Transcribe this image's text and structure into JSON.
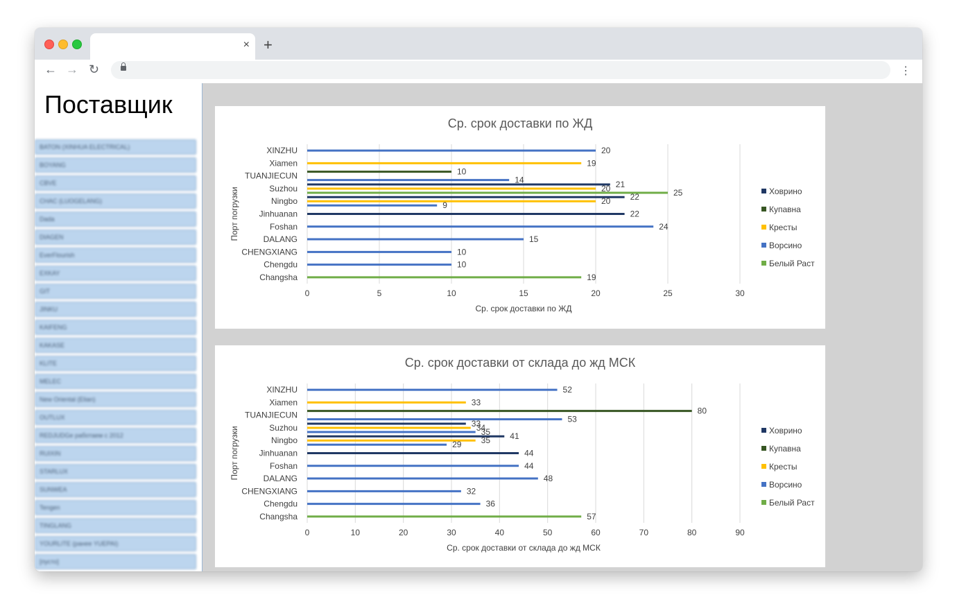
{
  "browser": {
    "tab_close_icon": "×",
    "new_tab_icon": "+",
    "back_icon": "←",
    "forward_icon": "→",
    "reload_icon": "↻",
    "menu_icon": "⋮"
  },
  "sidebar": {
    "title": "Поставщик",
    "items": [
      "BATON (XINHUA ELECTRICAL)",
      "BOYANG",
      "CBVE",
      "CHAC (LUOGELANG)",
      "Dada",
      "DIAGEN",
      "EverFlourish",
      "EXKAY",
      "GIT",
      "JINKU",
      "KAIFENG",
      "KAKASE",
      "KLITE",
      "MELEC",
      "New Oriental (Elian)",
      "OUTLUX",
      "REDJUDGe работаем с 2012",
      "RUIXIN",
      "STARLUX",
      "SUNWEA",
      "Tengen",
      "TINGLANG",
      "YOURLITE (ранее YUEPAI)",
      "[пусто]"
    ]
  },
  "colors": {
    "Ховрино": "#203864",
    "Купавна": "#375623",
    "Кресты": "#ffc000",
    "Ворсино": "#4472c4",
    "Белый Раст": "#70ad47"
  },
  "chart_data": [
    {
      "type": "bar",
      "orientation": "horizontal",
      "title": "Ср. срок доставки по ЖД",
      "xlabel": "Ср. срок доставки по ЖД",
      "ylabel": "Порт погрузки",
      "xlim": [
        0,
        30
      ],
      "xticks": [
        0,
        5,
        10,
        15,
        20,
        25,
        30
      ],
      "grid": true,
      "legend_position": "right",
      "legend": [
        "Ховрино",
        "Купавна",
        "Кресты",
        "Ворсино",
        "Белый Раст"
      ],
      "categories": [
        "XINZHU",
        "Xiamen",
        "TUANJIECUN",
        "Suzhou",
        "Ningbo",
        "Jinhuanan",
        "Foshan",
        "DALANG",
        "CHENGXIANG",
        "Chengdu",
        "Changsha"
      ],
      "bars": [
        {
          "category": "XINZHU",
          "items": [
            {
              "series": "Ворсино",
              "value": 20
            }
          ]
        },
        {
          "category": "Xiamen",
          "items": [
            {
              "series": "Кресты",
              "value": 19
            }
          ]
        },
        {
          "category": "TUANJIECUN",
          "items": [
            {
              "series": "Купавна",
              "value": 10
            },
            {
              "series": "Ворсино",
              "value": 14
            }
          ]
        },
        {
          "category": "Suzhou",
          "items": [
            {
              "series": "Ховрино",
              "value": 21
            },
            {
              "series": "Кресты",
              "value": 20
            },
            {
              "series": "Белый Раст",
              "value": 25
            }
          ]
        },
        {
          "category": "Ningbo",
          "items": [
            {
              "series": "Ховрино",
              "value": 22
            },
            {
              "series": "Кресты",
              "value": 20
            },
            {
              "series": "Ворсино",
              "value": 9
            }
          ]
        },
        {
          "category": "Jinhuanan",
          "items": [
            {
              "series": "Ховрино",
              "value": 22
            }
          ]
        },
        {
          "category": "Foshan",
          "items": [
            {
              "series": "Ворсино",
              "value": 24
            }
          ]
        },
        {
          "category": "DALANG",
          "items": [
            {
              "series": "Ворсино",
              "value": 15
            }
          ]
        },
        {
          "category": "CHENGXIANG",
          "items": [
            {
              "series": "Ворсино",
              "value": 10
            }
          ]
        },
        {
          "category": "Chengdu",
          "items": [
            {
              "series": "Ворсино",
              "value": 10
            }
          ]
        },
        {
          "category": "Changsha",
          "items": [
            {
              "series": "Белый Раст",
              "value": 19
            }
          ]
        }
      ]
    },
    {
      "type": "bar",
      "orientation": "horizontal",
      "title": "Ср. срок доставки от склада до жд МСК",
      "xlabel": "Ср. срок доставки от склада до жд МСК",
      "ylabel": "Порт погрузки",
      "xlim": [
        0,
        90
      ],
      "xticks": [
        0,
        10,
        20,
        30,
        40,
        50,
        60,
        70,
        80,
        90
      ],
      "grid": true,
      "legend_position": "right",
      "legend": [
        "Ховрино",
        "Купавна",
        "Кресты",
        "Ворсино",
        "Белый Раст"
      ],
      "categories": [
        "XINZHU",
        "Xiamen",
        "TUANJIECUN",
        "Suzhou",
        "Ningbo",
        "Jinhuanan",
        "Foshan",
        "DALANG",
        "CHENGXIANG",
        "Chengdu",
        "Changsha"
      ],
      "bars": [
        {
          "category": "XINZHU",
          "items": [
            {
              "series": "Ворсино",
              "value": 52
            }
          ]
        },
        {
          "category": "Xiamen",
          "items": [
            {
              "series": "Кресты",
              "value": 33
            }
          ]
        },
        {
          "category": "TUANJIECUN",
          "items": [
            {
              "series": "Купавна",
              "value": 80
            },
            {
              "series": "Ворсино",
              "value": 53
            }
          ]
        },
        {
          "category": "Suzhou",
          "items": [
            {
              "series": "Ховрино",
              "value": 33
            },
            {
              "series": "Кресты",
              "value": 34
            },
            {
              "series": "Ворсино",
              "value": 35
            }
          ]
        },
        {
          "category": "Ningbo",
          "items": [
            {
              "series": "Ховрино",
              "value": 41
            },
            {
              "series": "Кресты",
              "value": 35
            },
            {
              "series": "Ворсино",
              "value": 29
            }
          ]
        },
        {
          "category": "Jinhuanan",
          "items": [
            {
              "series": "Ховрино",
              "value": 44
            }
          ]
        },
        {
          "category": "Foshan",
          "items": [
            {
              "series": "Ворсино",
              "value": 44
            }
          ]
        },
        {
          "category": "DALANG",
          "items": [
            {
              "series": "Ворсино",
              "value": 48
            }
          ]
        },
        {
          "category": "CHENGXIANG",
          "items": [
            {
              "series": "Ворсино",
              "value": 32
            }
          ]
        },
        {
          "category": "Chengdu",
          "items": [
            {
              "series": "Ворсино",
              "value": 36
            }
          ]
        },
        {
          "category": "Changsha",
          "items": [
            {
              "series": "Белый Раст",
              "value": 57
            }
          ]
        }
      ]
    }
  ]
}
